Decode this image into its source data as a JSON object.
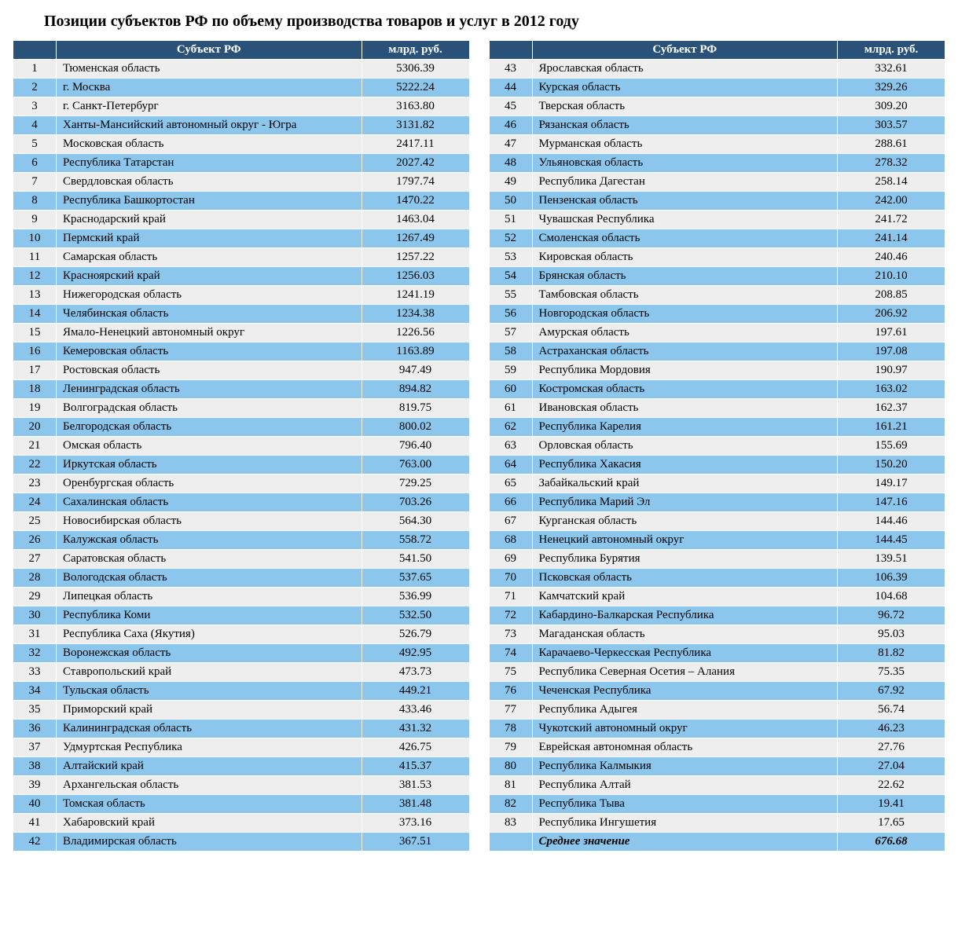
{
  "title": "Позиции субъектов РФ по объему производства товаров и услуг в 2012 году",
  "headers": {
    "rank": "",
    "name": "Субъект РФ",
    "value": "млрд. руб."
  },
  "colors": {
    "header_bg": "#2a5278",
    "header_text": "#ffffff",
    "row_odd": "#eeeeee",
    "row_even": "#8cc6ec"
  },
  "average": {
    "label": "Среднее значение",
    "value": "676.68"
  },
  "left_rows": [
    {
      "rank": "1",
      "name": "Тюменская область",
      "value": "5306.39"
    },
    {
      "rank": "2",
      "name": "г. Москва",
      "value": "5222.24"
    },
    {
      "rank": "3",
      "name": "г. Санкт-Петербург",
      "value": "3163.80"
    },
    {
      "rank": "4",
      "name": "Ханты-Мансийский автоном­ный округ - Югра",
      "value": "3131.82"
    },
    {
      "rank": "5",
      "name": "Московская область",
      "value": "2417.11"
    },
    {
      "rank": "6",
      "name": "Республика Татарстан",
      "value": "2027.42"
    },
    {
      "rank": "7",
      "name": "Свердловская область",
      "value": "1797.74"
    },
    {
      "rank": "8",
      "name": "Республика Башкортостан",
      "value": "1470.22"
    },
    {
      "rank": "9",
      "name": "Краснодарский край",
      "value": "1463.04"
    },
    {
      "rank": "10",
      "name": "Пермский край",
      "value": "1267.49"
    },
    {
      "rank": "11",
      "name": "Самарская область",
      "value": "1257.22"
    },
    {
      "rank": "12",
      "name": "Красноярский край",
      "value": "1256.03"
    },
    {
      "rank": "13",
      "name": "Нижегородская область",
      "value": "1241.19"
    },
    {
      "rank": "14",
      "name": "Челябинская область",
      "value": "1234.38"
    },
    {
      "rank": "15",
      "name": "Ямало-Ненецкий автономный округ",
      "value": "1226.56"
    },
    {
      "rank": "16",
      "name": "Кемеровская область",
      "value": "1163.89"
    },
    {
      "rank": "17",
      "name": "Ростовская область",
      "value": "947.49"
    },
    {
      "rank": "18",
      "name": "Ленинградская область",
      "value": "894.82"
    },
    {
      "rank": "19",
      "name": "Волгоградская область",
      "value": "819.75"
    },
    {
      "rank": "20",
      "name": "Белгородская область",
      "value": "800.02"
    },
    {
      "rank": "21",
      "name": "Омская область",
      "value": "796.40"
    },
    {
      "rank": "22",
      "name": "Иркутская область",
      "value": "763.00"
    },
    {
      "rank": "23",
      "name": "Оренбургская область",
      "value": "729.25"
    },
    {
      "rank": "24",
      "name": "Сахалинская область",
      "value": "703.26"
    },
    {
      "rank": "25",
      "name": "Новосибирская область",
      "value": "564.30"
    },
    {
      "rank": "26",
      "name": "Калужская область",
      "value": "558.72"
    },
    {
      "rank": "27",
      "name": "Саратовская область",
      "value": "541.50"
    },
    {
      "rank": "28",
      "name": "Вологодская область",
      "value": "537.65"
    },
    {
      "rank": "29",
      "name": "Липецкая область",
      "value": "536.99"
    },
    {
      "rank": "30",
      "name": "Республика Коми",
      "value": "532.50"
    },
    {
      "rank": "31",
      "name": "Республика Саха (Якутия)",
      "value": "526.79"
    },
    {
      "rank": "32",
      "name": "Воронежская область",
      "value": "492.95"
    },
    {
      "rank": "33",
      "name": "Ставропольский край",
      "value": "473.73"
    },
    {
      "rank": "34",
      "name": "Тульская область",
      "value": "449.21"
    },
    {
      "rank": "35",
      "name": "Приморский край",
      "value": "433.46"
    },
    {
      "rank": "36",
      "name": "Калининградская область",
      "value": "431.32"
    },
    {
      "rank": "37",
      "name": "Удмуртская Республика",
      "value": "426.75"
    },
    {
      "rank": "38",
      "name": "Алтайский край",
      "value": "415.37"
    },
    {
      "rank": "39",
      "name": "Архангельская область",
      "value": "381.53"
    },
    {
      "rank": "40",
      "name": "Томская область",
      "value": "381.48"
    },
    {
      "rank": "41",
      "name": "Хабаровский край",
      "value": "373.16"
    },
    {
      "rank": "42",
      "name": "Владимирская область",
      "value": "367.51"
    }
  ],
  "right_rows": [
    {
      "rank": "43",
      "name": "Ярославская область",
      "value": "332.61"
    },
    {
      "rank": "44",
      "name": "Курская область",
      "value": "329.26"
    },
    {
      "rank": "45",
      "name": "Тверская область",
      "value": "309.20"
    },
    {
      "rank": "46",
      "name": "Рязанская область",
      "value": "303.57"
    },
    {
      "rank": "47",
      "name": "Мурманская область",
      "value": "288.61"
    },
    {
      "rank": "48",
      "name": "Ульяновская область",
      "value": "278.32"
    },
    {
      "rank": "49",
      "name": "Республика Дагестан",
      "value": "258.14"
    },
    {
      "rank": "50",
      "name": "Пензенская область",
      "value": "242.00"
    },
    {
      "rank": "51",
      "name": "Чувашская Республика",
      "value": "241.72"
    },
    {
      "rank": "52",
      "name": "Смоленская область",
      "value": "241.14"
    },
    {
      "rank": "53",
      "name": "Кировская область",
      "value": "240.46"
    },
    {
      "rank": "54",
      "name": "Брянская область",
      "value": "210.10"
    },
    {
      "rank": "55",
      "name": "Тамбовская область",
      "value": "208.85"
    },
    {
      "rank": "56",
      "name": "Новгородская область",
      "value": "206.92"
    },
    {
      "rank": "57",
      "name": "Амурская область",
      "value": "197.61"
    },
    {
      "rank": "58",
      "name": "Астраханская область",
      "value": "197.08"
    },
    {
      "rank": "59",
      "name": "Республика Мордовия",
      "value": "190.97"
    },
    {
      "rank": "60",
      "name": "Костромская область",
      "value": "163.02"
    },
    {
      "rank": "61",
      "name": "Ивановская область",
      "value": "162.37"
    },
    {
      "rank": "62",
      "name": "Республика Карелия",
      "value": "161.21"
    },
    {
      "rank": "63",
      "name": "Орловская область",
      "value": "155.69"
    },
    {
      "rank": "64",
      "name": "Республика Хакасия",
      "value": "150.20"
    },
    {
      "rank": "65",
      "name": "Забайкальский край",
      "value": "149.17"
    },
    {
      "rank": "66",
      "name": "Республика Марий Эл",
      "value": "147.16"
    },
    {
      "rank": "67",
      "name": "Курганская область",
      "value": "144.46"
    },
    {
      "rank": "68",
      "name": "Ненецкий автономный округ",
      "value": "144.45"
    },
    {
      "rank": "69",
      "name": "Республика Бурятия",
      "value": "139.51"
    },
    {
      "rank": "70",
      "name": "Псковская область",
      "value": "106.39"
    },
    {
      "rank": "71",
      "name": "Камчатский край",
      "value": "104.68"
    },
    {
      "rank": "72",
      "name": "Кабардино-Балкарская Республика",
      "value": "96.72"
    },
    {
      "rank": "73",
      "name": "Магаданская область",
      "value": "95.03"
    },
    {
      "rank": "74",
      "name": "Карачаево-Черкесская Республика",
      "value": "81.82"
    },
    {
      "rank": "75",
      "name": "Республика Северная Осетия – Алания",
      "value": "75.35"
    },
    {
      "rank": "76",
      "name": "Чеченская Республика",
      "value": "67.92"
    },
    {
      "rank": "77",
      "name": "Республика Адыгея",
      "value": "56.74"
    },
    {
      "rank": "78",
      "name": "Чукотский автономный округ",
      "value": "46.23"
    },
    {
      "rank": "79",
      "name": "Еврейская автономная область",
      "value": "27.76"
    },
    {
      "rank": "80",
      "name": "Республика Калмыкия",
      "value": "27.04"
    },
    {
      "rank": "81",
      "name": "Республика Алтай",
      "value": "22.62"
    },
    {
      "rank": "82",
      "name": "Республика Тыва",
      "value": "19.41"
    },
    {
      "rank": "83",
      "name": "Республика Ингушетия",
      "value": "17.65"
    }
  ]
}
